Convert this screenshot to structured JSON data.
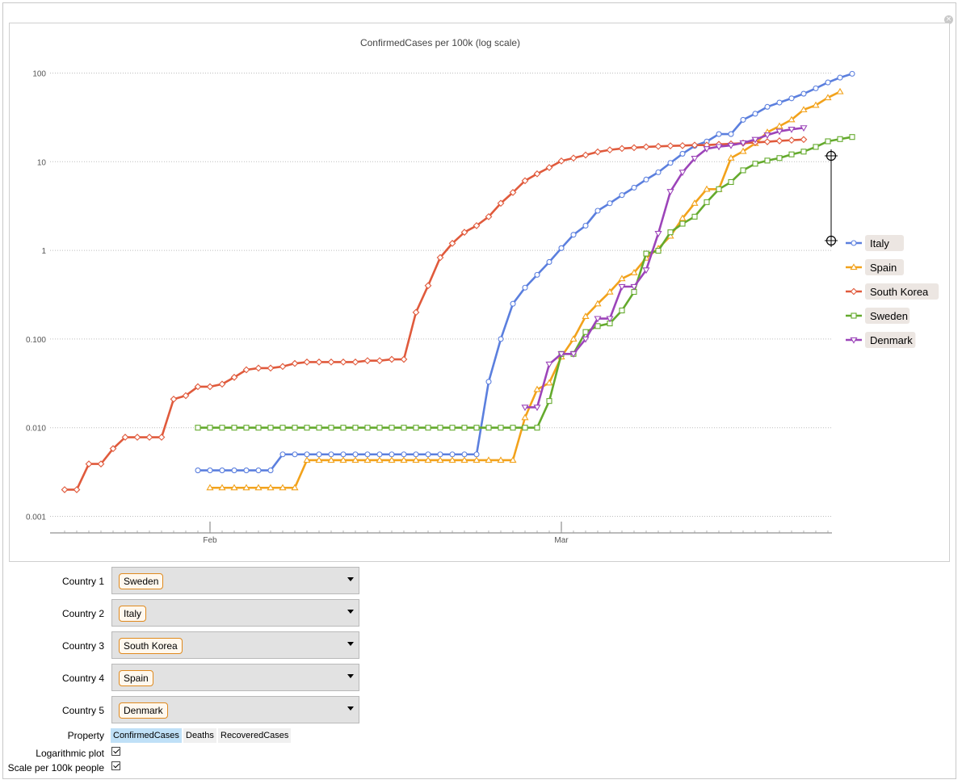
{
  "window": {
    "close_glyph": "×"
  },
  "chart_data": {
    "type": "line",
    "title": "ConfirmedCases per 100k (log scale)",
    "xlabel": "",
    "ylabel": "",
    "log_y": true,
    "grid": "horizontal dotted",
    "legend_position": "right",
    "x_ticks": [
      "Feb",
      "Mar"
    ],
    "y_ticks": [
      "100",
      "10",
      "1",
      "0.100",
      "0.010",
      "0.001"
    ],
    "ylim": [
      0.001,
      100
    ],
    "x_start": "2020-01-20",
    "x_end": "2020-03-23",
    "series": [
      {
        "name": "Italy",
        "color": "#5b7fde",
        "marker": "circle",
        "start": "2020-01-31",
        "values": [
          0.0033,
          0.0033,
          0.0033,
          0.0033,
          0.0033,
          0.0033,
          0.0033,
          0.005,
          0.005,
          0.005,
          0.005,
          0.005,
          0.005,
          0.005,
          0.005,
          0.005,
          0.005,
          0.005,
          0.005,
          0.005,
          0.005,
          0.005,
          0.005,
          0.005,
          0.033,
          0.1,
          0.25,
          0.38,
          0.53,
          0.74,
          1.06,
          1.5,
          1.9,
          2.8,
          3.4,
          4.2,
          5.1,
          6.3,
          7.6,
          9.7,
          12.3,
          15.1,
          16.9,
          20.5,
          20.5,
          29.7,
          34.8,
          41.6,
          46.5,
          51.9,
          58.5,
          67.3,
          78.4,
          88.9,
          98.2
        ]
      },
      {
        "name": "Spain",
        "color": "#f2a21b",
        "marker": "triangle-up",
        "start": "2020-02-01",
        "values": [
          0.0021,
          0.0021,
          0.0021,
          0.0021,
          0.0021,
          0.0021,
          0.0021,
          0.0021,
          0.0043,
          0.0043,
          0.0043,
          0.0043,
          0.0043,
          0.0043,
          0.0043,
          0.0043,
          0.0043,
          0.0043,
          0.0043,
          0.0043,
          0.0043,
          0.0043,
          0.0043,
          0.0043,
          0.0043,
          0.0043,
          0.013,
          0.027,
          0.032,
          0.063,
          0.1,
          0.18,
          0.25,
          0.34,
          0.48,
          0.56,
          0.82,
          1.05,
          1.45,
          2.3,
          3.4,
          4.9,
          4.9,
          11.0,
          13.1,
          16.1,
          21.5,
          25.2,
          29.8,
          38.6,
          43.4,
          52.8,
          61.7
        ]
      },
      {
        "name": "South Korea",
        "color": "#e05a3c",
        "marker": "diamond",
        "start": "2020-01-20",
        "values": [
          0.002,
          0.002,
          0.0039,
          0.0039,
          0.0058,
          0.0078,
          0.0078,
          0.0078,
          0.0078,
          0.021,
          0.023,
          0.029,
          0.029,
          0.031,
          0.037,
          0.045,
          0.047,
          0.047,
          0.049,
          0.053,
          0.055,
          0.055,
          0.055,
          0.055,
          0.055,
          0.057,
          0.057,
          0.059,
          0.059,
          0.2,
          0.4,
          0.83,
          1.2,
          1.6,
          1.9,
          2.4,
          3.4,
          4.5,
          6.1,
          7.3,
          8.6,
          10.2,
          11.0,
          11.9,
          12.9,
          13.6,
          14.1,
          14.4,
          14.7,
          14.9,
          15.1,
          15.2,
          15.4,
          15.4,
          15.7,
          15.9,
          16.2,
          16.5,
          16.8,
          17.2,
          17.5,
          17.8
        ]
      },
      {
        "name": "Sweden",
        "color": "#64aa2d",
        "marker": "square",
        "start": "2020-01-31",
        "values": [
          0.01,
          0.01,
          0.01,
          0.01,
          0.01,
          0.01,
          0.01,
          0.01,
          0.01,
          0.01,
          0.01,
          0.01,
          0.01,
          0.01,
          0.01,
          0.01,
          0.01,
          0.01,
          0.01,
          0.01,
          0.01,
          0.01,
          0.01,
          0.01,
          0.01,
          0.01,
          0.01,
          0.01,
          0.01,
          0.02,
          0.068,
          0.068,
          0.12,
          0.14,
          0.15,
          0.21,
          0.34,
          0.92,
          0.99,
          1.6,
          2.0,
          2.4,
          3.5,
          4.9,
          5.9,
          8.0,
          9.5,
          10.3,
          11.0,
          12.1,
          13.0,
          14.7,
          17.0,
          18.0,
          19.0
        ]
      },
      {
        "name": "Denmark",
        "color": "#9c44b9",
        "marker": "triangle-down",
        "start": "2020-02-27",
        "values": [
          0.017,
          0.017,
          0.052,
          0.068,
          0.068,
          0.1,
          0.17,
          0.17,
          0.39,
          0.39,
          0.6,
          1.55,
          4.6,
          7.6,
          10.9,
          14.0,
          14.8,
          15.3,
          16.3,
          17.8,
          20.0,
          22.0,
          23.2,
          24.1
        ]
      }
    ]
  },
  "controls": {
    "countries": [
      {
        "label": "Country 1",
        "value": "Sweden"
      },
      {
        "label": "Country 2",
        "value": "Italy"
      },
      {
        "label": "Country 3",
        "value": "South Korea"
      },
      {
        "label": "Country 4",
        "value": "Spain"
      },
      {
        "label": "Country 5",
        "value": "Denmark"
      }
    ],
    "property_label": "Property",
    "property_options": [
      "ConfirmedCases",
      "Deaths",
      "RecoveredCases"
    ],
    "property_selected": "ConfirmedCases",
    "log_plot_label": "Logarithmic plot",
    "log_plot_checked": true,
    "scale_label": "Scale per 100k people",
    "scale_checked": true
  }
}
